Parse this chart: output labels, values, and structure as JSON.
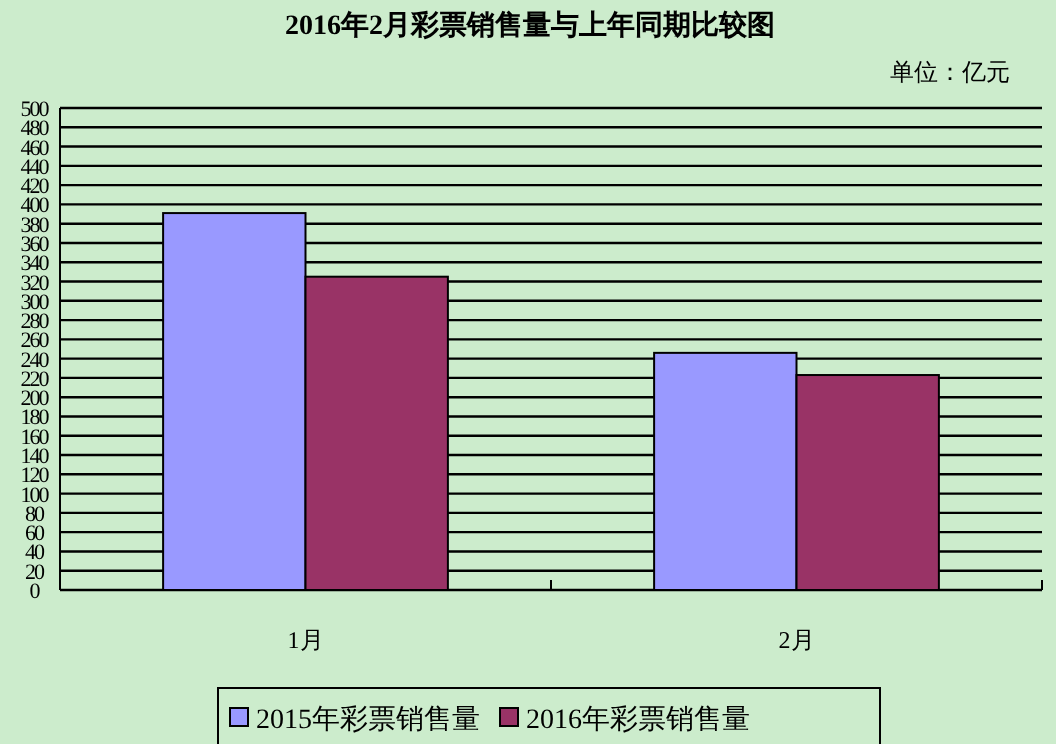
{
  "chart_data": {
    "type": "bar",
    "title": "2016年2月彩票销售量与上年同期比较图",
    "annotations": [
      "单位：亿元"
    ],
    "categories": [
      "1月",
      "2月"
    ],
    "series": [
      {
        "name": "2015年彩票销售量",
        "color": "#9999ff",
        "values": [
          391,
          246
        ]
      },
      {
        "name": "2016年彩票销售量",
        "color": "#993366",
        "values": [
          325,
          223
        ]
      }
    ],
    "ylim": [
      0,
      500
    ],
    "yticks": [
      0,
      20,
      40,
      60,
      80,
      100,
      120,
      140,
      160,
      180,
      200,
      220,
      240,
      260,
      280,
      300,
      320,
      340,
      360,
      380,
      400,
      420,
      440,
      460,
      480,
      500
    ],
    "grid": "y",
    "legend": "bottom"
  }
}
